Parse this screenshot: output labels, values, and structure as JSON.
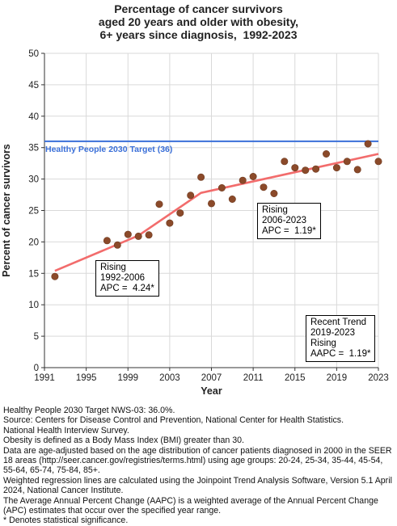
{
  "title_lines": [
    "Percentage of cancer survivors",
    "aged 20 years and older with obesity,",
    "6+ years since diagnosis,  1992-2023"
  ],
  "chart_data": {
    "type": "scatter",
    "title": "Percentage of cancer survivors aged 20 years and older with obesity, 6+ years since diagnosis,  1992-2023",
    "xlabel": "Year",
    "ylabel": "Percent of cancer survivors",
    "xlim": [
      1991,
      2023
    ],
    "ylim": [
      0,
      50
    ],
    "xticks": [
      1991,
      1995,
      1999,
      2003,
      2007,
      2011,
      2015,
      2019,
      2023
    ],
    "yticks": [
      0,
      5,
      10,
      15,
      20,
      25,
      30,
      35,
      40,
      45,
      50
    ],
    "grid": true,
    "colors": {
      "points": "#8b4a2a",
      "trend": "#f26c6c",
      "target": "#3a6fd8"
    },
    "points": [
      [
        1992,
        14.5
      ],
      [
        1997,
        20.2
      ],
      [
        1998,
        19.5
      ],
      [
        1999,
        21.2
      ],
      [
        2000,
        20.9
      ],
      [
        2001,
        21.1
      ],
      [
        2002,
        26.0
      ],
      [
        2003,
        23.0
      ],
      [
        2004,
        24.6
      ],
      [
        2005,
        27.4
      ],
      [
        2006,
        30.3
      ],
      [
        2007,
        26.1
      ],
      [
        2008,
        28.6
      ],
      [
        2009,
        26.8
      ],
      [
        2010,
        29.8
      ],
      [
        2011,
        30.4
      ],
      [
        2012,
        28.7
      ],
      [
        2013,
        27.7
      ],
      [
        2014,
        32.8
      ],
      [
        2015,
        31.8
      ],
      [
        2016,
        31.4
      ],
      [
        2017,
        31.6
      ],
      [
        2018,
        34.0
      ],
      [
        2019,
        31.8
      ],
      [
        2020,
        32.8
      ],
      [
        2021,
        31.5
      ],
      [
        2022,
        35.6
      ],
      [
        2023,
        32.8
      ]
    ],
    "trend": [
      [
        1992,
        15.4
      ],
      [
        2000,
        21.0
      ],
      [
        2006,
        27.8
      ],
      [
        2023,
        34.0
      ]
    ],
    "target": {
      "value": 36,
      "label": "Healthy People 2030 Target (36)"
    },
    "annotations": [
      {
        "lines": [
          "Rising",
          "1992-2006",
          "APC =  4.24*"
        ]
      },
      {
        "lines": [
          "Rising",
          "2006-2023",
          "APC =  1.19*"
        ]
      },
      {
        "lines": [
          "Recent Trend",
          "2019-2023",
          "Rising",
          "AAPC =  1.19*"
        ]
      }
    ]
  },
  "notes": [
    "Healthy People 2030 Target NWS-03: 36.0%.",
    "Source: Centers for Disease Control and Prevention, National Center for Health Statistics.",
    "National Health Interview Survey.",
    "Obesity is defined as a Body Mass Index (BMI) greater than 30.",
    "Data are age-adjusted based on the age distribution of cancer patients diagnosed in 2000 in the SEER 18 areas (http://seer.cancer.gov/registries/terms.html) using age groups: 20-24, 25-34, 35-44, 45-54, 55-64, 65-74, 75-84, 85+.",
    "Weighted regression lines are calculated using the Joinpoint Trend Analysis Software, Version 5.1 April 2024, National Cancer Institute.",
    "The Average Annual Percent Change (AAPC) is a weighted average of the Annual Percent Change (APC) estimates that occur over the specified year range.",
    "* Denotes statistical significance."
  ]
}
